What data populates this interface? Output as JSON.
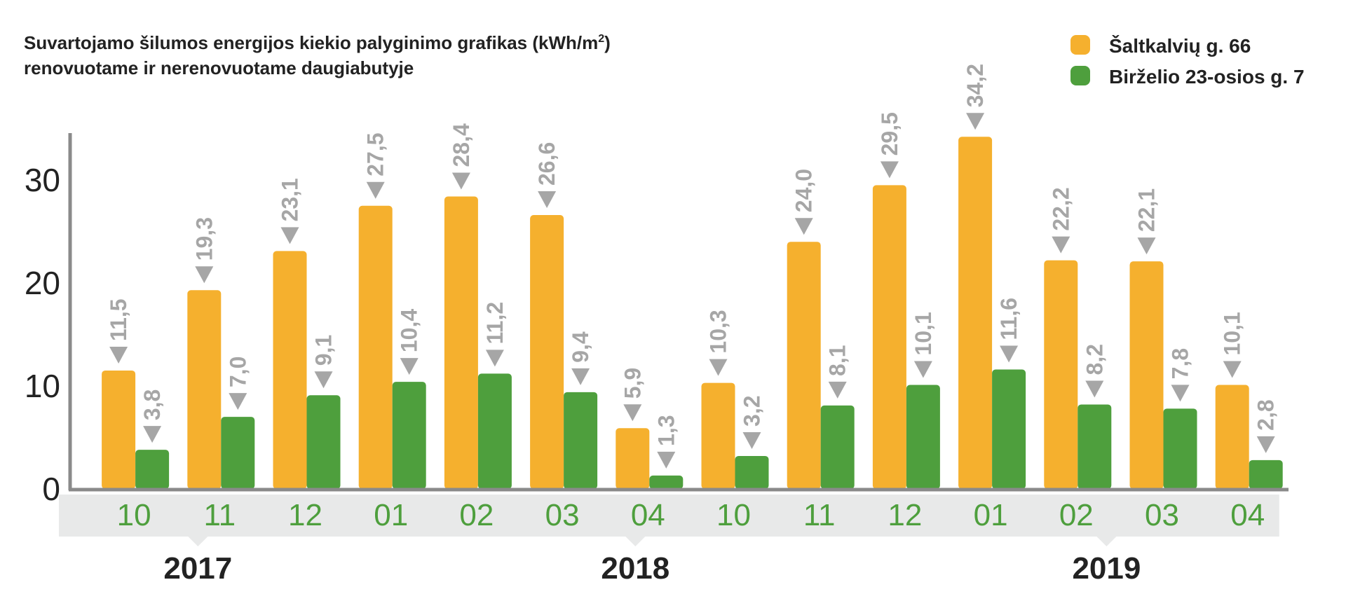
{
  "chart_data": {
    "type": "bar",
    "title_line1": "Suvartojamo šilumos energijos kiekio palyginimo grafikas (kWh/m",
    "title_sup": "2",
    "title_line1_end": ")",
    "title_line2": "renovuotame ir nerenovuotame daugiabutyje",
    "categories": [
      "10",
      "11",
      "12",
      "01",
      "02",
      "03",
      "04",
      "10",
      "11",
      "12",
      "01",
      "02",
      "03",
      "04"
    ],
    "groups": [
      {
        "label": "2017",
        "start": 0,
        "end": 2
      },
      {
        "label": "2018",
        "start": 3,
        "end": 9
      },
      {
        "label": "2019",
        "start": 10,
        "end": 13
      }
    ],
    "series": [
      {
        "name": "Šaltkalvių g. 66",
        "color": "#f5b02e",
        "values": [
          11.5,
          19.3,
          23.1,
          27.5,
          28.4,
          26.6,
          5.9,
          10.3,
          24.0,
          29.5,
          34.2,
          22.2,
          22.1,
          10.1
        ],
        "labels": [
          "11,5",
          "19,3",
          "23,1",
          "27,5",
          "28,4",
          "26,6",
          "5,9",
          "10,3",
          "24,0",
          "29,5",
          "34,2",
          "22,2",
          "22,1",
          "10,1"
        ]
      },
      {
        "name": "Birželio 23-osios g. 7",
        "color": "#4e9f3d",
        "values": [
          3.8,
          7.0,
          9.1,
          10.4,
          11.2,
          9.4,
          1.3,
          3.2,
          8.1,
          10.1,
          11.6,
          8.2,
          7.8,
          2.8
        ],
        "labels": [
          "3,8",
          "7,0",
          "9,1",
          "10,4",
          "11,2",
          "9,4",
          "1,3",
          "3,2",
          "8,1",
          "10,1",
          "11,6",
          "8,2",
          "7,8",
          "2,8"
        ]
      }
    ],
    "yticks": [
      0,
      10,
      20,
      30
    ],
    "ylim": [
      0,
      35
    ],
    "axis_color": "#8a8a8a",
    "label_color": "#a6a6a6",
    "band_color": "#e8e9e9",
    "tick_color": "#4e9f3d",
    "legend_position": "top-right",
    "grid": false
  }
}
